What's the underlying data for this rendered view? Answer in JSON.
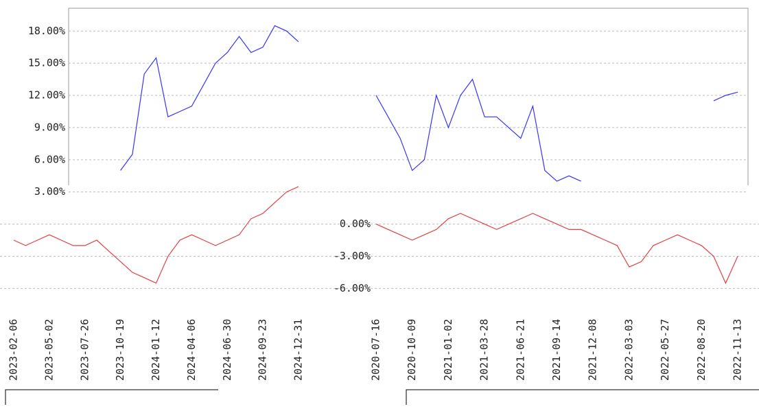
{
  "chart_data": [
    {
      "type": "line",
      "categories": [
        "2023-02-06",
        null,
        null,
        "2023-05-02",
        null,
        null,
        "2023-07-26",
        null,
        null,
        "2023-10-19",
        null,
        null,
        "2024-01-12",
        null,
        null,
        "2024-04-06",
        null,
        null,
        "2024-06-30",
        null,
        null,
        "2024-09-23",
        null,
        null,
        "2024-12-31"
      ],
      "series": [
        {
          "color": "#3333ff",
          "values": [
            null,
            null,
            null,
            null,
            null,
            null,
            null,
            null,
            null,
            5,
            6.5,
            14,
            15.5,
            10,
            10.5,
            11,
            13,
            15,
            16,
            17.5,
            16,
            16.5,
            18.5,
            18,
            17
          ]
        },
        {
          "color": "#e04040",
          "values": [
            -1.5,
            -2,
            -1.5,
            -1,
            -1.5,
            -2,
            -2,
            -1.5,
            -2.5,
            -3.5,
            -4.5,
            -5,
            -5.5,
            -3,
            -1.5,
            -1,
            -1.5,
            -2,
            -1.5,
            -1,
            0.5,
            1,
            2,
            3,
            3.5
          ]
        }
      ],
      "ylim": [
        -7,
        20
      ],
      "yticks": [
        {
          "value": 3,
          "label": "3.00%"
        },
        {
          "value": 6,
          "label": "6.00%"
        },
        {
          "value": 9,
          "label": "9.00%"
        },
        {
          "value": 12,
          "label": "12.00%"
        },
        {
          "value": 15,
          "label": "15.00%"
        },
        {
          "value": 18,
          "label": "18.00%"
        }
      ],
      "grid": true
    },
    {
      "type": "line",
      "categories": [
        "2020-07-16",
        null,
        null,
        "2020-10-09",
        null,
        null,
        "2021-01-02",
        null,
        null,
        "2021-03-28",
        null,
        null,
        "2021-06-21",
        null,
        null,
        "2021-09-14",
        null,
        null,
        "2021-12-08",
        null,
        null,
        "2022-03-03",
        null,
        null,
        "2022-05-27",
        null,
        null,
        "2022-08-20",
        null,
        null,
        "2022-11-13"
      ],
      "series": [
        {
          "color": "#3333ff",
          "values": [
            12,
            10,
            8,
            5,
            6,
            12,
            9,
            12,
            13.5,
            10,
            10,
            9,
            8,
            11,
            5,
            4,
            4.5,
            4,
            null,
            null,
            null,
            null,
            null,
            null,
            null,
            null,
            null,
            null,
            11.5,
            12,
            12.3
          ]
        },
        {
          "color": "#e04040",
          "values": [
            0,
            -0.5,
            -1,
            -1.5,
            -1,
            -0.5,
            0.5,
            1,
            0.5,
            0,
            -0.5,
            0,
            0.5,
            1,
            0.5,
            0,
            -0.5,
            -0.5,
            -1,
            -1.5,
            -2,
            -4,
            -3.5,
            -2,
            -1.5,
            -1,
            -1.5,
            -2,
            -3,
            -5.5,
            -3
          ]
        }
      ],
      "ylim": [
        -7,
        20
      ],
      "yticks": [
        {
          "value": -6,
          "label": "-6.00%"
        },
        {
          "value": -3,
          "label": "-3.00%"
        },
        {
          "value": 0,
          "label": "0.00%"
        }
      ],
      "grid": true
    }
  ]
}
